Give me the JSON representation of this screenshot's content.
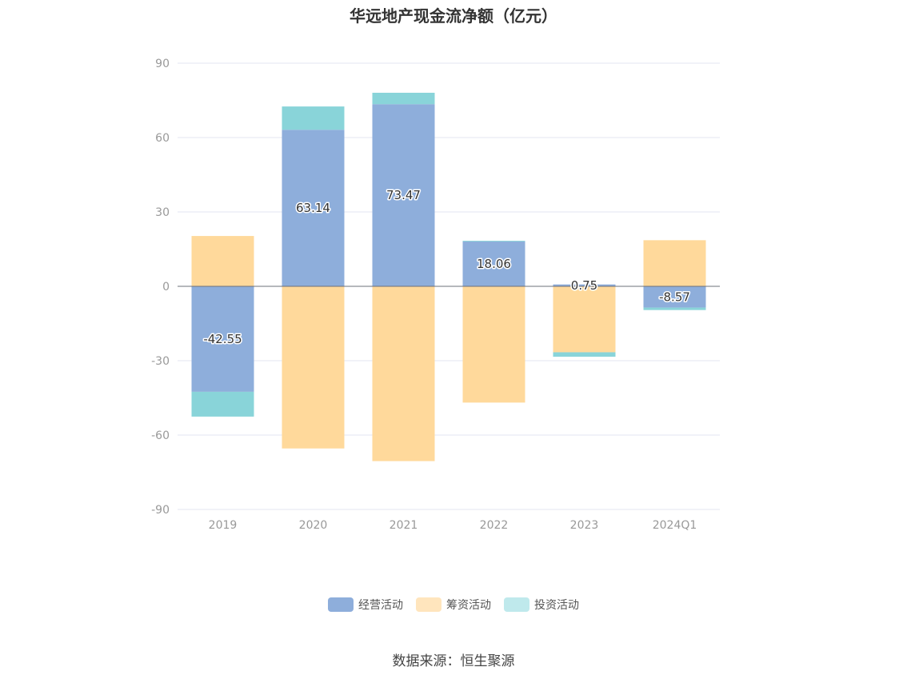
{
  "chart_data": {
    "type": "bar",
    "stacked": true,
    "title": "华远地产现金流净额（亿元）",
    "categories": [
      "2019",
      "2020",
      "2021",
      "2022",
      "2023",
      "2024Q1"
    ],
    "ylim": [
      -90,
      90
    ],
    "yticks": [
      90,
      60,
      30,
      0,
      -30,
      -60,
      -90
    ],
    "grid": true,
    "legend_position": "bottom",
    "series": [
      {
        "name": "经营活动",
        "color": "#8eaedb",
        "values": [
          -42.55,
          63.14,
          73.47,
          18.06,
          0.75,
          -8.57
        ],
        "labels": [
          "-42.55",
          "63.14",
          "73.47",
          "18.06",
          "0.75",
          "-8.57"
        ]
      },
      {
        "name": "筹资活动",
        "color": "#ffd99b",
        "values": [
          20.3,
          -65.4,
          -70.5,
          -46.9,
          -26.6,
          18.6
        ]
      },
      {
        "name": "投资活动",
        "color": "#89d4d9",
        "values": [
          -10.0,
          9.4,
          4.6,
          0.3,
          -1.8,
          -1.0
        ]
      }
    ]
  },
  "legend": [
    {
      "name": "经营活动",
      "color": "#8eaedb"
    },
    {
      "name": "筹资活动",
      "color": "#ffe5bd"
    },
    {
      "name": "投资活动",
      "color": "#bfe9ec"
    }
  ],
  "source": "数据来源：恒生聚源"
}
